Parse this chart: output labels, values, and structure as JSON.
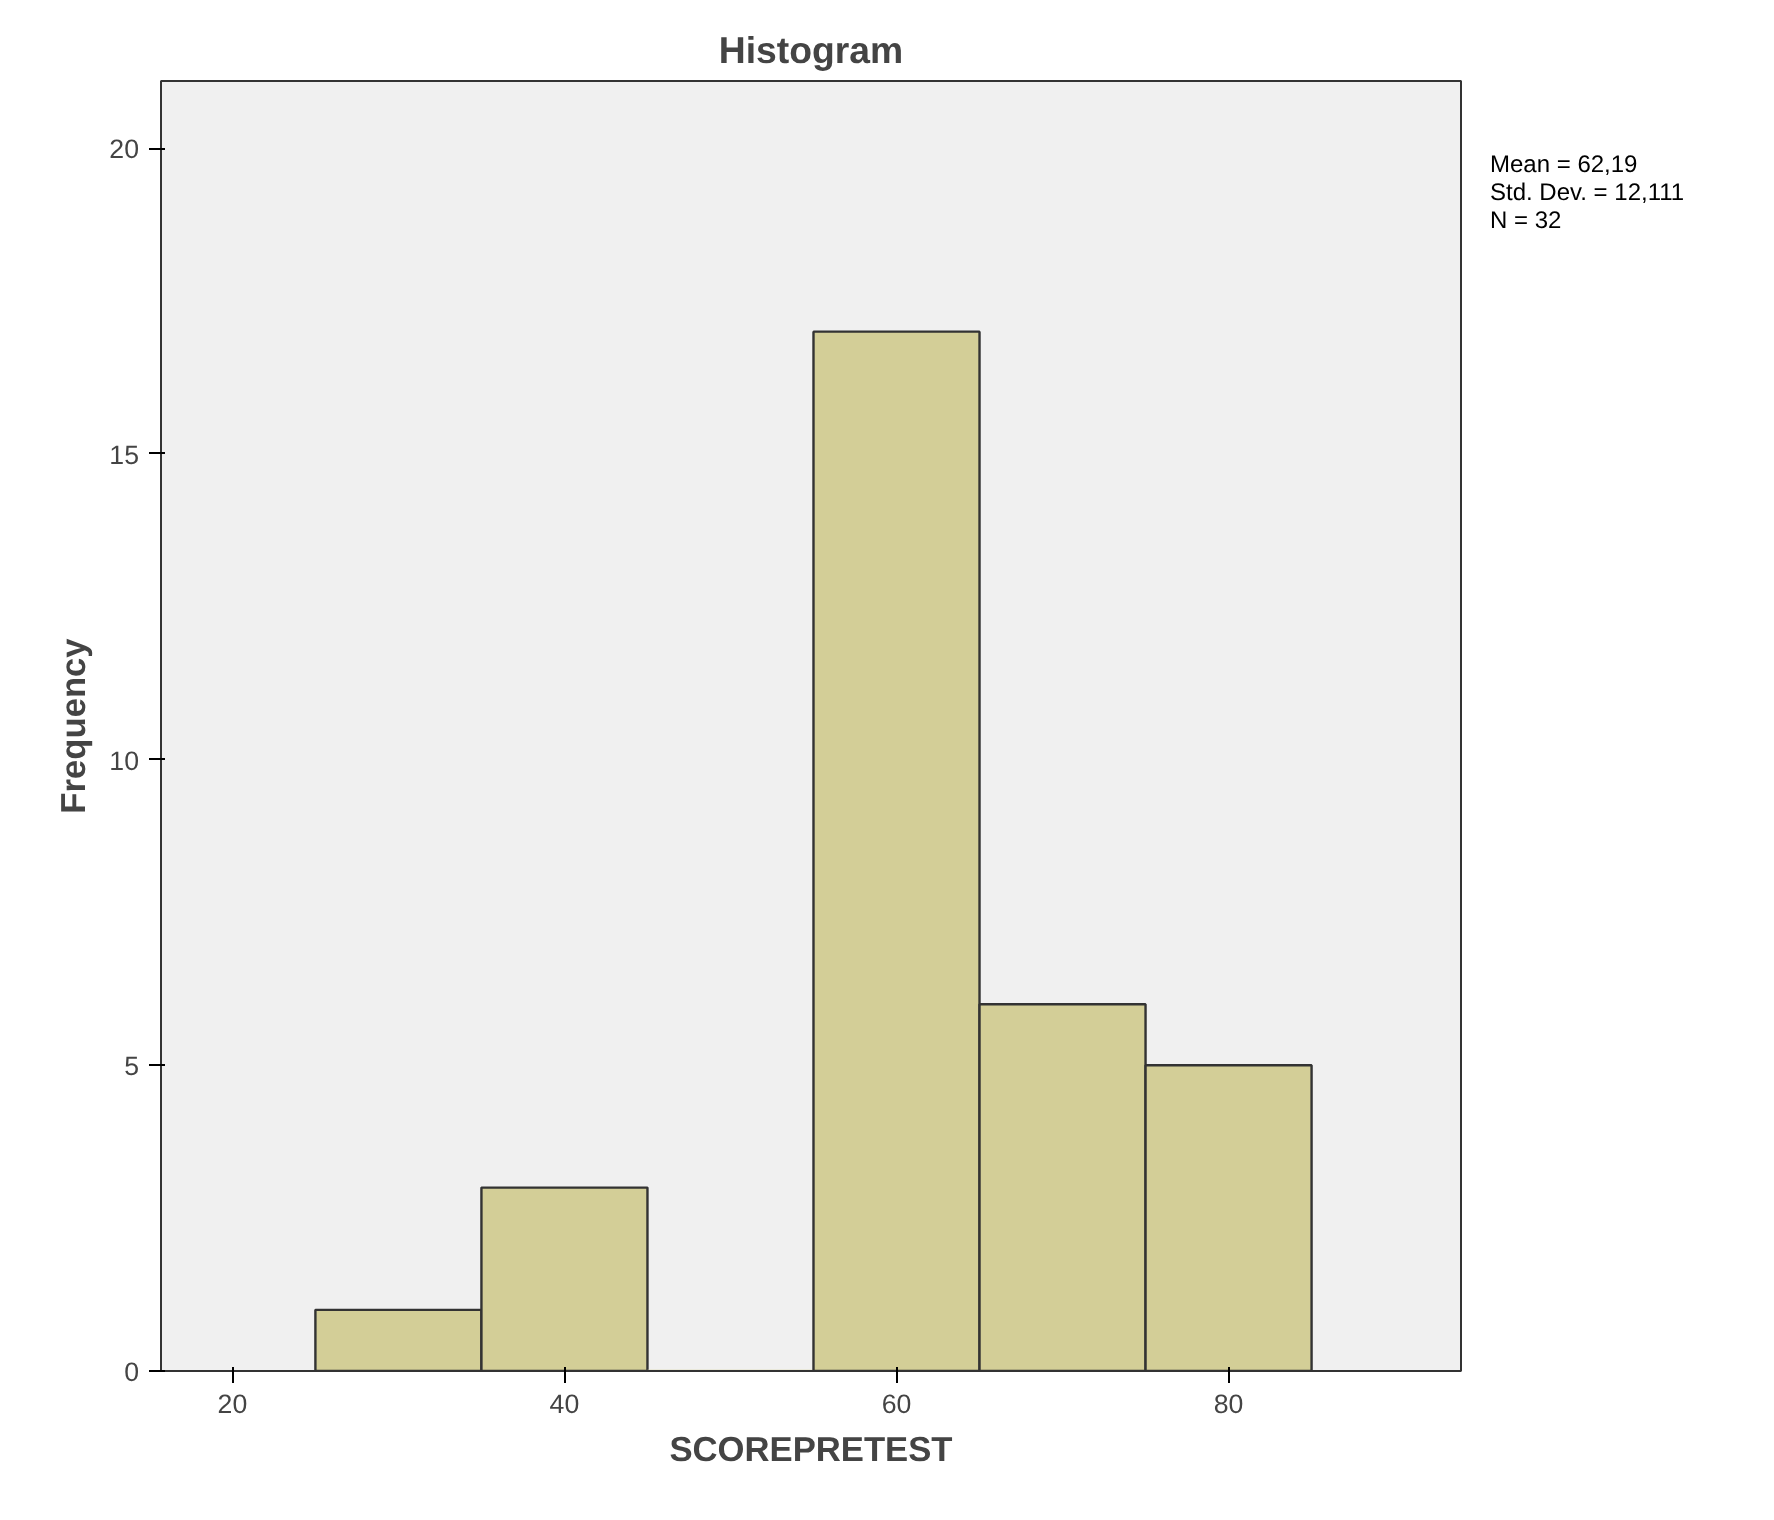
{
  "chart_data": {
    "type": "histogram",
    "title": "Histogram",
    "xlabel": "SCOREPRETEST",
    "ylabel": "Frequency",
    "bins": [
      25,
      35,
      45,
      55,
      65,
      75,
      85
    ],
    "values": [
      1,
      3,
      0,
      17,
      6,
      5
    ],
    "color": "#d3ce97",
    "xlim": [
      15.7,
      94
    ],
    "xticks": [
      20,
      40,
      60,
      80
    ],
    "ylim": [
      0,
      21.1
    ],
    "yticks": [
      0,
      5,
      10,
      15,
      20
    ],
    "grid": false,
    "annotations": [
      "Mean = 62,19",
      "Std. Dev. = 12,111",
      "N = 32"
    ]
  }
}
